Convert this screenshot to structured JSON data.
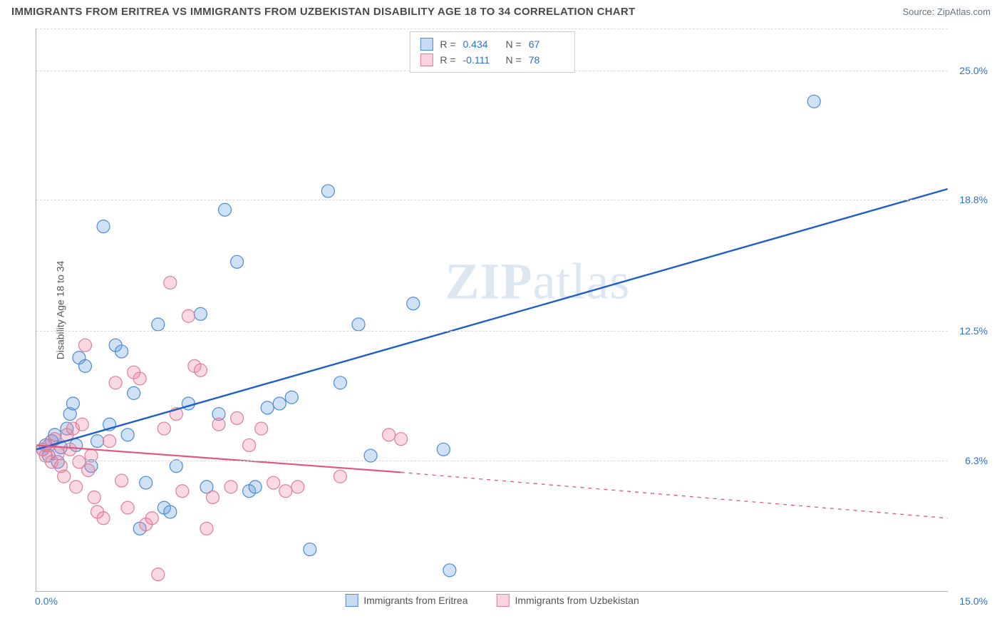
{
  "header": {
    "title": "IMMIGRANTS FROM ERITREA VS IMMIGRANTS FROM UZBEKISTAN DISABILITY AGE 18 TO 34 CORRELATION CHART",
    "source_prefix": "Source: ",
    "source_name": "ZipAtlas.com"
  },
  "watermark": {
    "zip": "ZIP",
    "atlas": "atlas"
  },
  "chart": {
    "type": "scatter",
    "ylabel": "Disability Age 18 to 34",
    "xlim": [
      0.0,
      15.0
    ],
    "ylim": [
      0.0,
      27.0
    ],
    "yticks": [
      {
        "value": 6.3,
        "label": "6.3%"
      },
      {
        "value": 12.5,
        "label": "12.5%"
      },
      {
        "value": 18.8,
        "label": "18.8%"
      },
      {
        "value": 25.0,
        "label": "25.0%"
      }
    ],
    "grid_extra_y": [
      27.0
    ],
    "xticks": {
      "left": "0.0%",
      "right": "15.0%"
    },
    "grid_color": "#d9d9d9",
    "background_color": "#ffffff",
    "marker_radius": 9,
    "marker_stroke_width": 1.2,
    "series": [
      {
        "id": "eritrea",
        "name": "Immigrants from Eritrea",
        "fill": "rgba(95,155,220,0.30)",
        "stroke": "#4b8bd4",
        "R": "0.434",
        "N": "67",
        "trend": {
          "solid": [
            [
              0.0,
              6.8
            ],
            [
              15.0,
              19.3
            ]
          ],
          "color": "#1d5fc4",
          "width": 2.4
        },
        "points": [
          [
            0.1,
            6.8
          ],
          [
            0.15,
            7.0
          ],
          [
            0.2,
            6.5
          ],
          [
            0.25,
            7.2
          ],
          [
            0.3,
            7.5
          ],
          [
            0.35,
            6.2
          ],
          [
            0.4,
            6.9
          ],
          [
            0.5,
            7.8
          ],
          [
            0.55,
            8.5
          ],
          [
            0.6,
            9.0
          ],
          [
            0.65,
            7.0
          ],
          [
            0.7,
            11.2
          ],
          [
            0.8,
            10.8
          ],
          [
            0.9,
            6.0
          ],
          [
            1.0,
            7.2
          ],
          [
            1.1,
            17.5
          ],
          [
            1.2,
            8.0
          ],
          [
            1.3,
            11.8
          ],
          [
            1.4,
            11.5
          ],
          [
            1.5,
            7.5
          ],
          [
            1.6,
            9.5
          ],
          [
            1.7,
            3.0
          ],
          [
            1.8,
            5.2
          ],
          [
            2.0,
            12.8
          ],
          [
            2.1,
            4.0
          ],
          [
            2.2,
            3.8
          ],
          [
            2.3,
            6.0
          ],
          [
            2.5,
            9.0
          ],
          [
            2.7,
            13.3
          ],
          [
            2.8,
            5.0
          ],
          [
            3.0,
            8.5
          ],
          [
            3.1,
            18.3
          ],
          [
            3.3,
            15.8
          ],
          [
            3.5,
            4.8
          ],
          [
            3.6,
            5.0
          ],
          [
            3.8,
            8.8
          ],
          [
            4.0,
            9.0
          ],
          [
            4.2,
            9.3
          ],
          [
            4.5,
            2.0
          ],
          [
            4.8,
            19.2
          ],
          [
            5.0,
            10.0
          ],
          [
            5.3,
            12.8
          ],
          [
            5.5,
            6.5
          ],
          [
            6.2,
            13.8
          ],
          [
            6.7,
            6.8
          ],
          [
            6.8,
            1.0
          ],
          [
            12.8,
            23.5
          ]
        ]
      },
      {
        "id": "uzbekistan",
        "name": "Immigrants from Uzbekistan",
        "fill": "rgba(240,130,160,0.30)",
        "stroke": "#de7d9e",
        "R": "-0.111",
        "N": "78",
        "trend": {
          "solid": [
            [
              0.0,
              7.0
            ],
            [
              6.0,
              5.7
            ]
          ],
          "dashed": [
            [
              6.0,
              5.7
            ],
            [
              15.0,
              3.5
            ]
          ],
          "color": "#e0567f",
          "width": 2.2
        },
        "points": [
          [
            0.1,
            6.8
          ],
          [
            0.15,
            6.5
          ],
          [
            0.2,
            7.0
          ],
          [
            0.25,
            6.2
          ],
          [
            0.3,
            7.3
          ],
          [
            0.35,
            6.6
          ],
          [
            0.4,
            6.0
          ],
          [
            0.45,
            5.5
          ],
          [
            0.5,
            7.5
          ],
          [
            0.55,
            6.8
          ],
          [
            0.6,
            7.8
          ],
          [
            0.65,
            5.0
          ],
          [
            0.7,
            6.2
          ],
          [
            0.75,
            8.0
          ],
          [
            0.8,
            11.8
          ],
          [
            0.85,
            5.8
          ],
          [
            0.9,
            6.5
          ],
          [
            0.95,
            4.5
          ],
          [
            1.0,
            3.8
          ],
          [
            1.1,
            3.5
          ],
          [
            1.2,
            7.2
          ],
          [
            1.3,
            10.0
          ],
          [
            1.4,
            5.3
          ],
          [
            1.5,
            4.0
          ],
          [
            1.6,
            10.5
          ],
          [
            1.7,
            10.2
          ],
          [
            1.8,
            3.2
          ],
          [
            1.9,
            3.5
          ],
          [
            2.0,
            0.8
          ],
          [
            2.1,
            7.8
          ],
          [
            2.2,
            14.8
          ],
          [
            2.3,
            8.5
          ],
          [
            2.4,
            4.8
          ],
          [
            2.5,
            13.2
          ],
          [
            2.6,
            10.8
          ],
          [
            2.7,
            10.6
          ],
          [
            2.8,
            3.0
          ],
          [
            2.9,
            4.5
          ],
          [
            3.0,
            8.0
          ],
          [
            3.2,
            5.0
          ],
          [
            3.3,
            8.3
          ],
          [
            3.5,
            7.0
          ],
          [
            3.7,
            7.8
          ],
          [
            3.9,
            5.2
          ],
          [
            4.1,
            4.8
          ],
          [
            4.3,
            5.0
          ],
          [
            5.0,
            5.5
          ],
          [
            5.8,
            7.5
          ],
          [
            6.0,
            7.3
          ]
        ]
      }
    ]
  },
  "legend_top": {
    "r_label": "R =",
    "n_label": "N ="
  }
}
